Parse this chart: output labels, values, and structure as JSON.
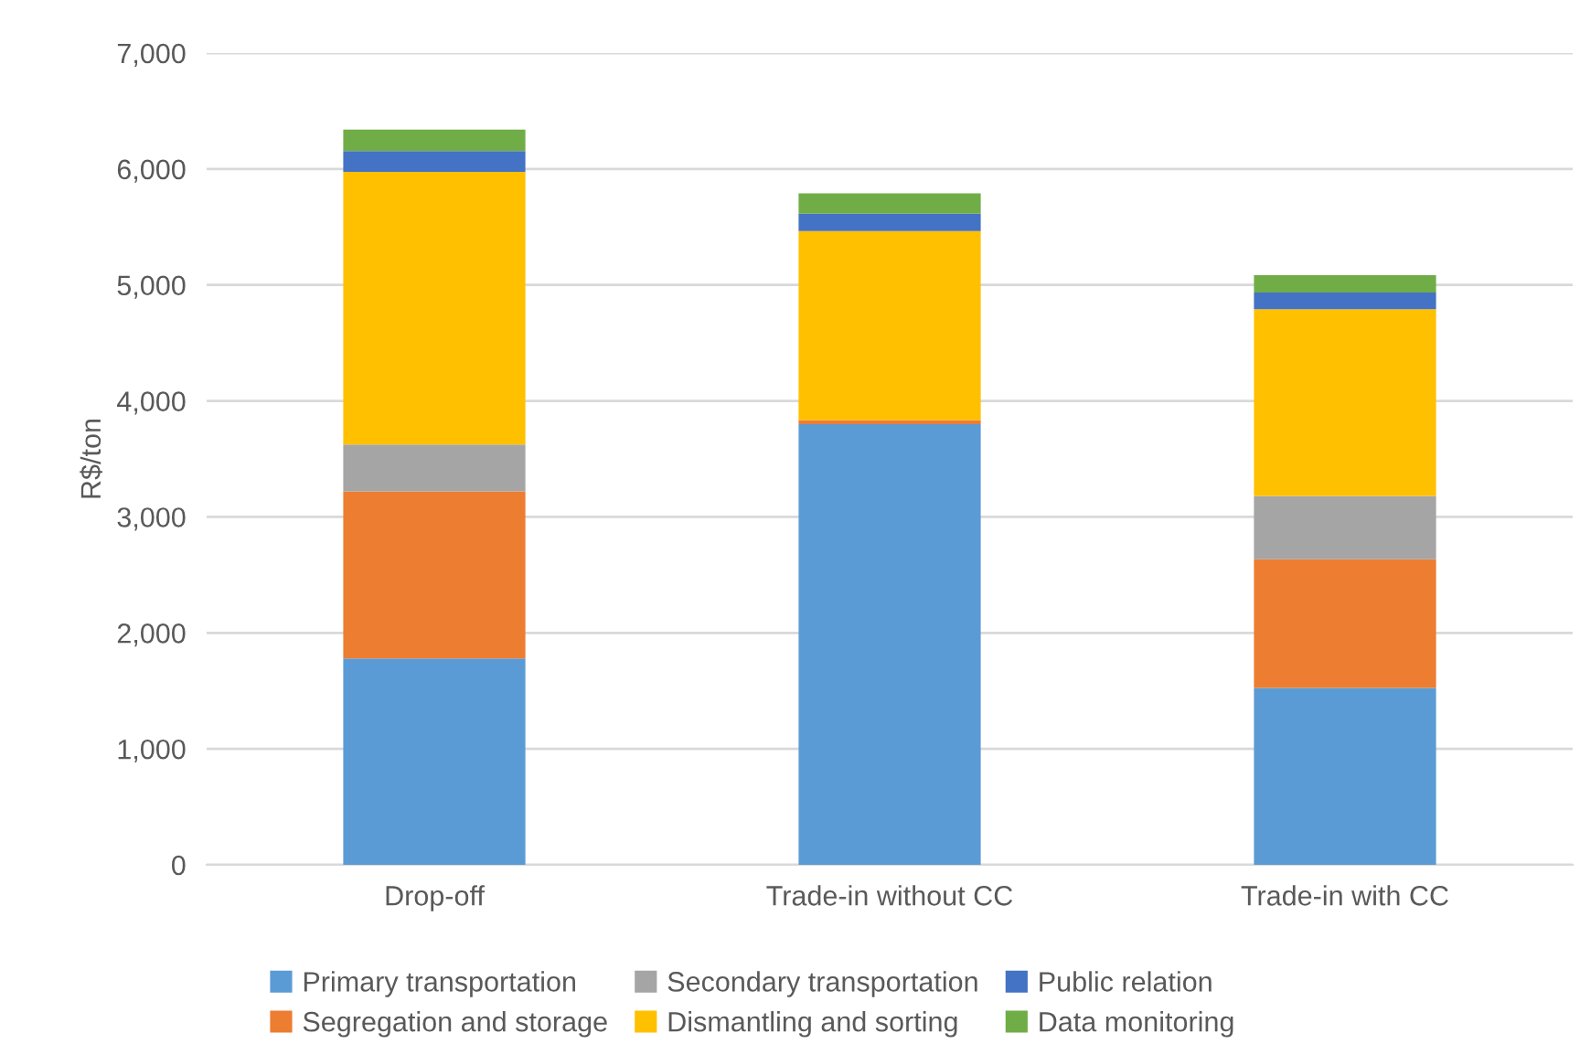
{
  "chart_data": {
    "type": "bar",
    "stacked": true,
    "ylabel": "R$/ton",
    "categories": [
      "Drop-off",
      "Trade-in without CC",
      "Trade-in with CC"
    ],
    "series": [
      {
        "name": "Primary transportation",
        "color": "#5b9bd5",
        "values": [
          1780,
          3800,
          1525
        ]
      },
      {
        "name": "Segregation and storage",
        "color": "#ed7d31",
        "values": [
          1440,
          35,
          1110
        ]
      },
      {
        "name": "Secondary transportation",
        "color": "#a5a5a5",
        "values": [
          405,
          0,
          545
        ]
      },
      {
        "name": "Dismantling and sorting",
        "color": "#ffc000",
        "values": [
          2350,
          1630,
          1610
        ]
      },
      {
        "name": "Public relation",
        "color": "#4472c4",
        "values": [
          180,
          150,
          145
        ]
      },
      {
        "name": "Data monitoring",
        "color": "#70ad47",
        "values": [
          185,
          175,
          150
        ]
      }
    ],
    "ylim": [
      0,
      7000
    ],
    "yticks": [
      {
        "value": 0,
        "label": "0"
      },
      {
        "value": 1000,
        "label": "1,000"
      },
      {
        "value": 2000,
        "label": "2,000"
      },
      {
        "value": 3000,
        "label": "3,000"
      },
      {
        "value": 4000,
        "label": "4,000"
      },
      {
        "value": 5000,
        "label": "5,000"
      },
      {
        "value": 6000,
        "label": "6,000"
      },
      {
        "value": 7000,
        "label": "7,000"
      }
    ],
    "grid": "y",
    "legend": "bottom"
  }
}
